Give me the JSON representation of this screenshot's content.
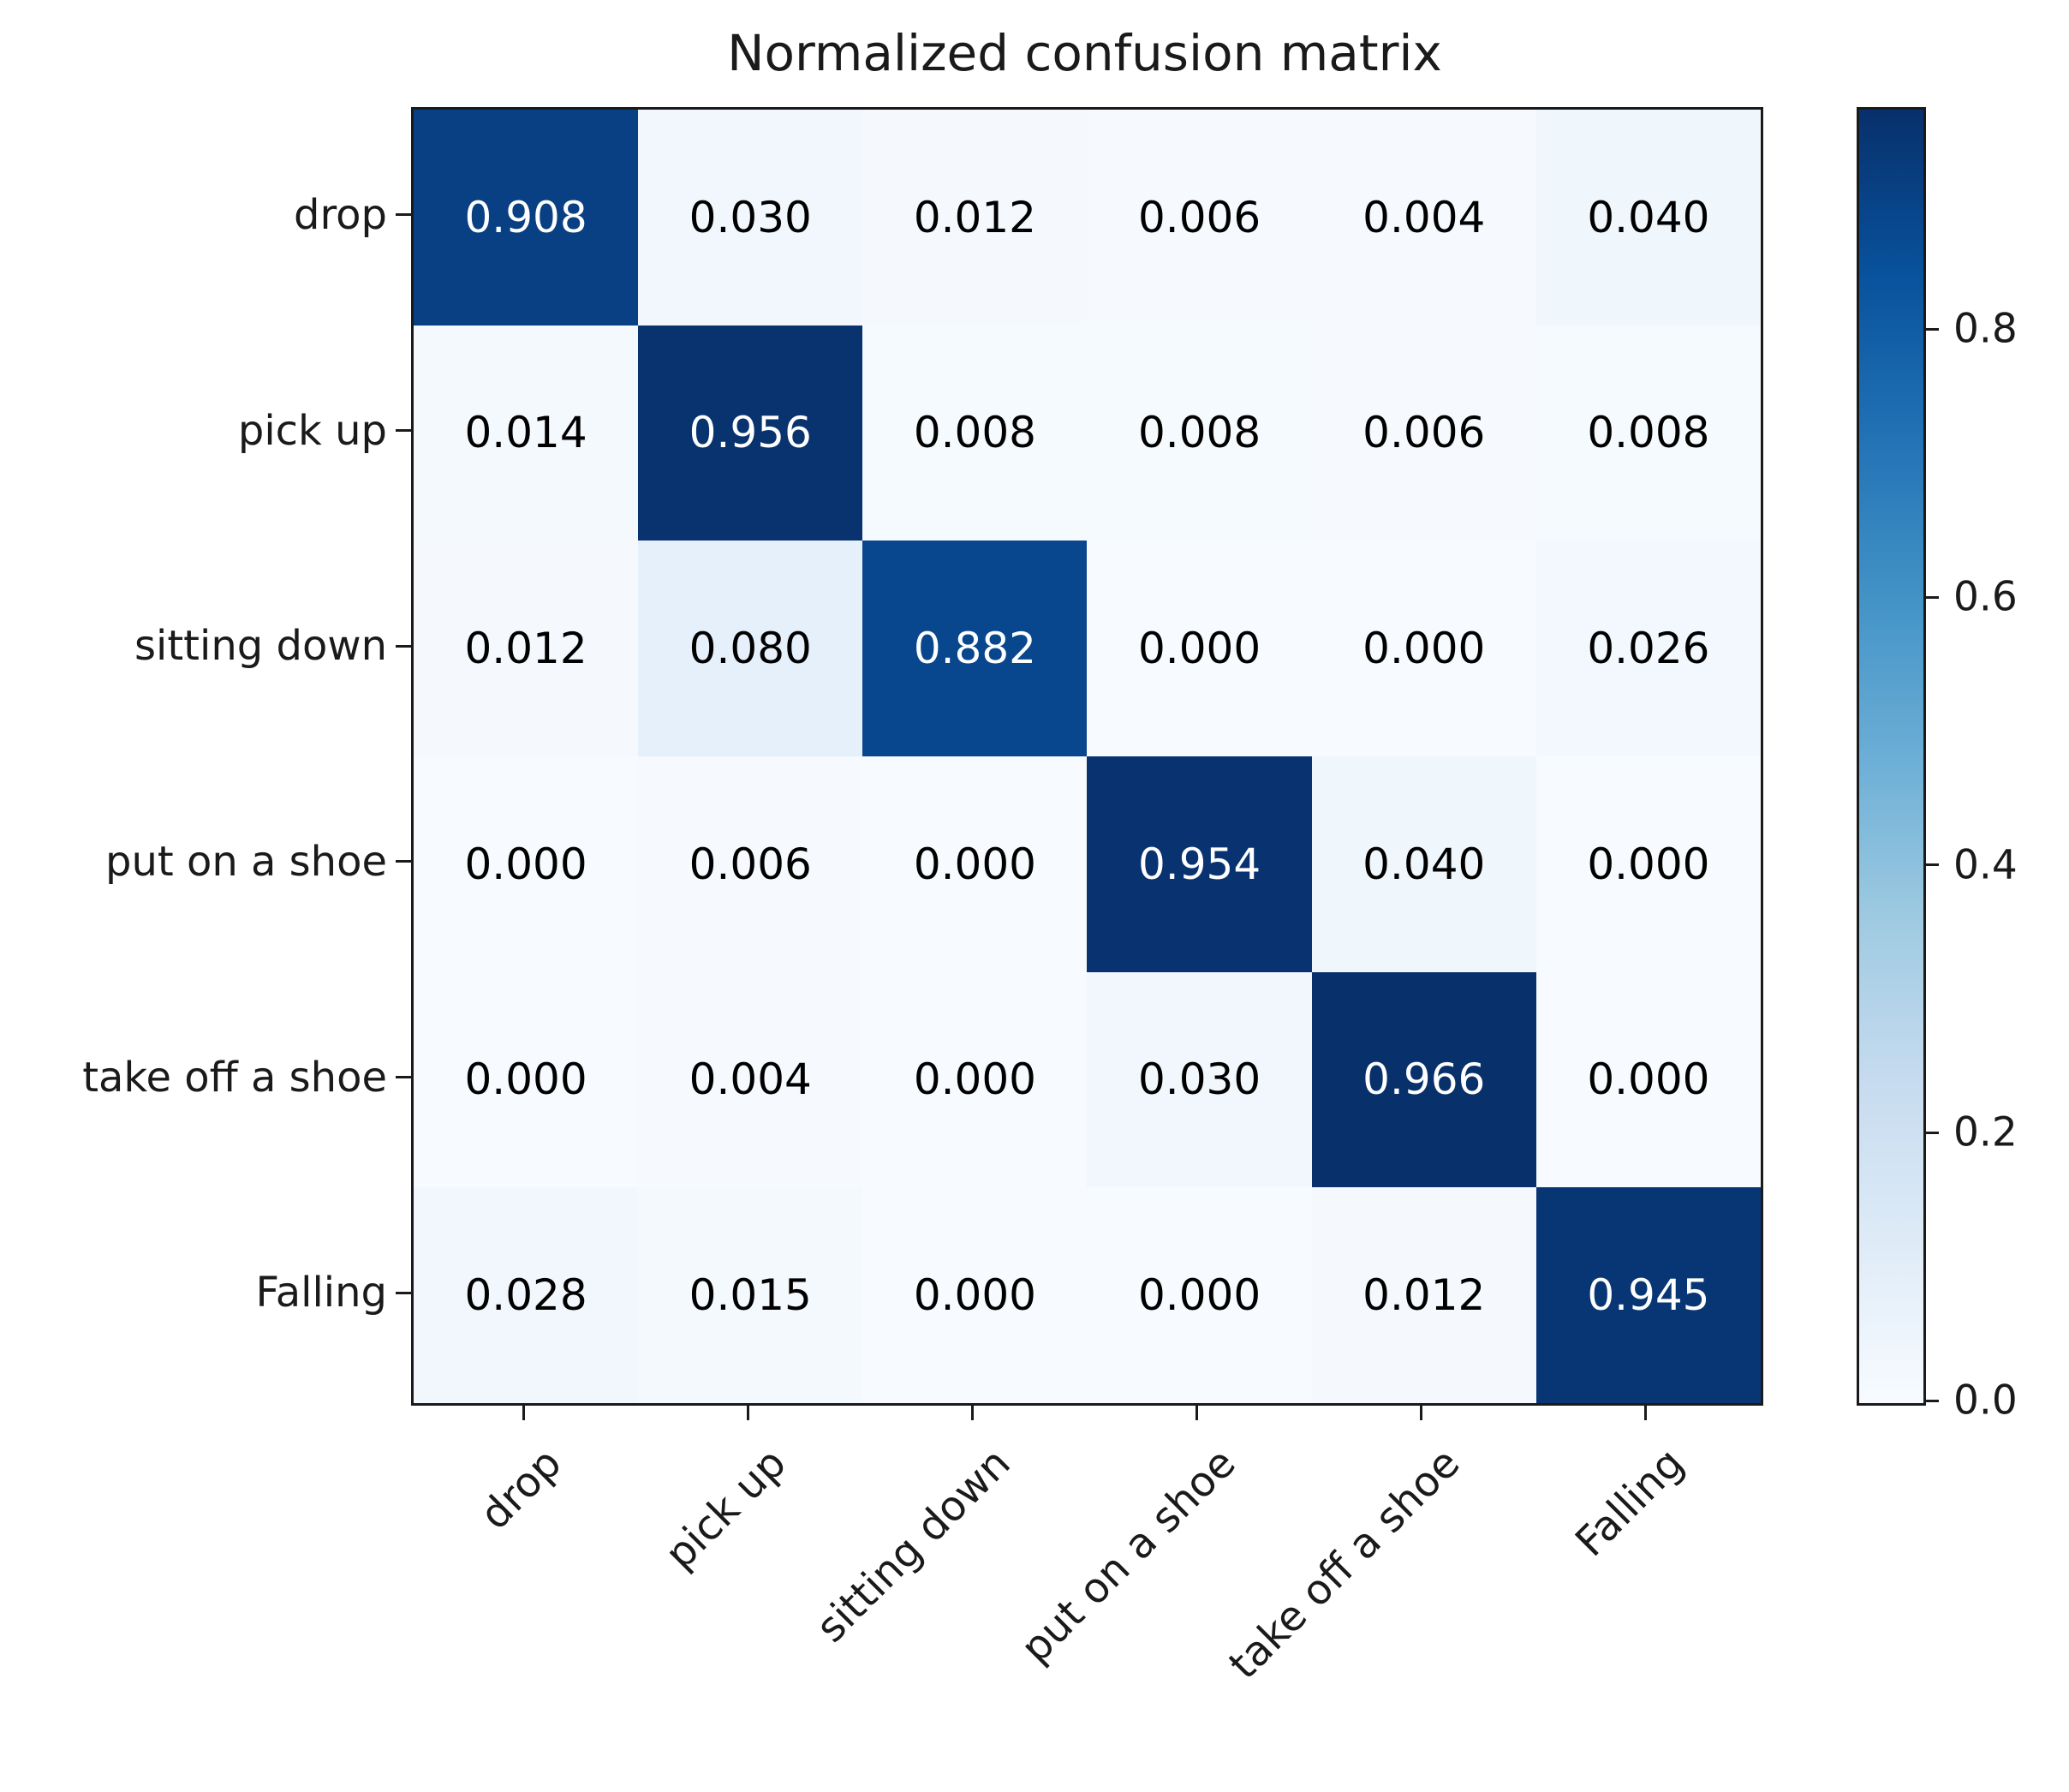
{
  "figure": {
    "background_color": "#ffffff",
    "axes_color": "#1a1a1a"
  },
  "chart_data": {
    "type": "heatmap",
    "title": "Normalized confusion matrix",
    "row_labels": [
      "drop",
      "pick up",
      "sitting down",
      "put on a shoe",
      "take off a shoe",
      "Falling"
    ],
    "col_labels": [
      "drop",
      "pick up",
      "sitting down",
      "put on a shoe",
      "take off a shoe",
      "Falling"
    ],
    "matrix": [
      [
        0.908,
        0.03,
        0.012,
        0.006,
        0.004,
        0.04
      ],
      [
        0.014,
        0.956,
        0.008,
        0.008,
        0.006,
        0.008
      ],
      [
        0.012,
        0.08,
        0.882,
        0.0,
        0.0,
        0.026
      ],
      [
        0.0,
        0.006,
        0.0,
        0.954,
        0.04,
        0.0
      ],
      [
        0.0,
        0.004,
        0.0,
        0.03,
        0.966,
        0.0
      ],
      [
        0.028,
        0.015,
        0.0,
        0.0,
        0.012,
        0.945
      ]
    ],
    "value_decimals": 3,
    "vmin": 0.0,
    "vmax": 0.966,
    "colormap": "Blues",
    "colormap_positions": [
      0,
      0.125,
      0.25,
      0.375,
      0.5,
      0.625,
      0.75,
      0.875,
      1.0
    ],
    "colormap_colors": [
      "#f7fbff",
      "#deebf7",
      "#c6dbef",
      "#9ecae1",
      "#6baed6",
      "#4292c6",
      "#2171b5",
      "#08519c",
      "#08306b"
    ],
    "colorbar_tick_values": [
      0.8,
      0.6,
      0.4,
      0.2,
      0.0
    ],
    "colorbar_tick_labels": [
      "0.8",
      "0.6",
      "0.4",
      "0.2",
      "0.0"
    ],
    "colorbar_position": "right",
    "text_threshold": 0.483,
    "text_color_high": "#ffffff",
    "text_color_low": "#000000",
    "grid": false,
    "xlabel": "",
    "ylabel": ""
  }
}
